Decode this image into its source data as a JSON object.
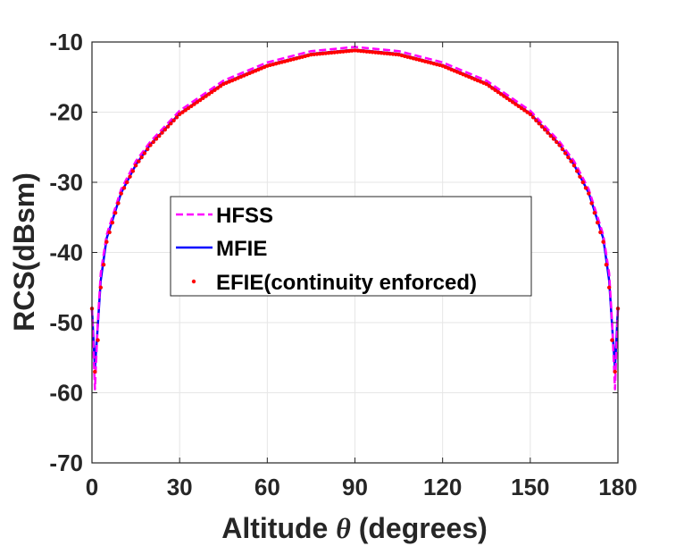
{
  "chart_data": {
    "type": "line",
    "xlabel_prefix": "Altitude ",
    "xlabel_symbol": "θ",
    "xlabel_suffix": " (degrees)",
    "ylabel": "RCS(dBsm)",
    "xlim": [
      0,
      180
    ],
    "ylim": [
      -70,
      -10
    ],
    "xticks": [
      0,
      30,
      60,
      90,
      120,
      150,
      180
    ],
    "yticks": [
      -10,
      -20,
      -30,
      -40,
      -50,
      -60,
      -70
    ],
    "grid": true,
    "legend_position": "center",
    "series": [
      {
        "name": "HFSS",
        "style": "dashed",
        "color": "#ff00ff",
        "x": [
          0,
          1,
          2,
          3,
          5,
          10,
          15,
          20,
          30,
          45,
          60,
          75,
          90,
          105,
          120,
          135,
          150,
          160,
          165,
          170,
          175,
          177,
          178,
          179,
          180
        ],
        "y": [
          -48,
          -59.5,
          -50,
          -43,
          -37.5,
          -31,
          -27,
          -24.2,
          -19.8,
          -15.5,
          -12.9,
          -11.3,
          -10.7,
          -11.3,
          -12.9,
          -15.5,
          -19.8,
          -24.2,
          -27,
          -31,
          -37.5,
          -43,
          -50,
          -59.5,
          -48
        ]
      },
      {
        "name": "MFIE",
        "style": "solid",
        "color": "#0000ff",
        "x": [
          0,
          1,
          2,
          3,
          5,
          10,
          15,
          20,
          30,
          45,
          60,
          75,
          90,
          105,
          120,
          135,
          150,
          160,
          165,
          170,
          175,
          177,
          178,
          179,
          180
        ],
        "y": [
          -48,
          -56.5,
          -50.5,
          -44,
          -38,
          -31.5,
          -27.5,
          -24.6,
          -20.2,
          -15.9,
          -13.3,
          -11.7,
          -11.1,
          -11.7,
          -13.3,
          -15.9,
          -20.2,
          -24.6,
          -27.5,
          -31.5,
          -38,
          -44,
          -50.5,
          -56.5,
          -48
        ]
      },
      {
        "name": "EFIE(continuity enforced)",
        "style": "dots",
        "color": "#ff0000",
        "x": [
          0,
          1,
          2,
          3,
          5,
          10,
          15,
          20,
          30,
          45,
          60,
          75,
          90,
          105,
          120,
          135,
          150,
          160,
          165,
          170,
          175,
          177,
          178,
          179,
          180
        ],
        "y": [
          -48,
          -57,
          -52.5,
          -45,
          -38.5,
          -31.6,
          -27.6,
          -24.7,
          -20.3,
          -16,
          -13.4,
          -11.8,
          -11.2,
          -11.8,
          -13.4,
          -16,
          -20.3,
          -24.7,
          -27.6,
          -31.6,
          -38.5,
          -45,
          -52.5,
          -57,
          -48
        ]
      }
    ]
  },
  "colors": {
    "axis": "#262626",
    "grid": "#e6e6e6",
    "background": "#ffffff"
  }
}
